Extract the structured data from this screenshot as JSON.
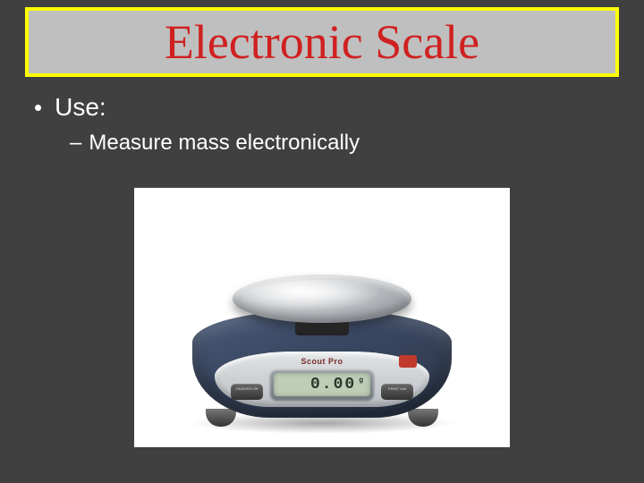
{
  "slide": {
    "background_color": "#404040",
    "title_box": {
      "text": "Electronic Scale",
      "text_color": "#d02020",
      "background_color": "#bfbfbf",
      "border_color": "#ffff00",
      "font_family": "Times New Roman",
      "font_size_pt": 40
    },
    "bullets": {
      "level1": {
        "marker": "•",
        "text": "Use:",
        "font_size_pt": 21,
        "color": "#ffffff"
      },
      "level2": {
        "marker": "–",
        "text": "Measure mass electronically",
        "font_size_pt": 18,
        "color": "#ffffff"
      }
    },
    "image": {
      "type": "infographic",
      "description": "electronic-balance-scale",
      "background_color": "#ffffff",
      "scale_body_color": "#3a4862",
      "face_panel_color": "#d0d3d6",
      "pan_color": "#b7bbbf",
      "brand_label": "Scout Pro",
      "button_left_label": "ON/ZERO Off",
      "button_right_label": "PRINT Unit",
      "lcd_reading": "0.00",
      "lcd_unit": "g",
      "lcd_bg_color": "#bfcdb6",
      "logo_color": "#c0392b"
    }
  }
}
